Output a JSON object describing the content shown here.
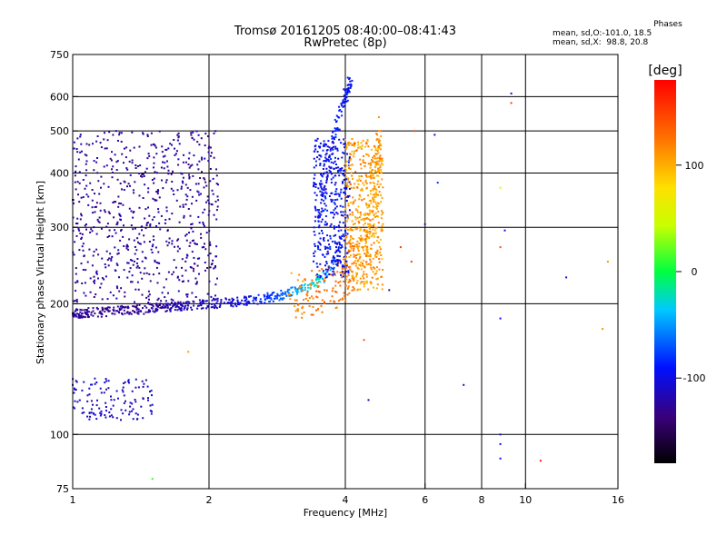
{
  "header": {
    "title_line1": "Tromsø 20161205 08:40:00–08:41:43",
    "title_line2": "RwPretec (8p)"
  },
  "phases_box": {
    "heading": "Phases",
    "line_o": "mean, sd,O:-101.0, 18.5",
    "line_x": "mean, sd,X:  98.8, 20.8"
  },
  "chart_data": {
    "type": "scatter",
    "title": "Tromsø 20161205 08:40:00–08:41:43",
    "subtitle": "RwPretec (8p)",
    "xlabel": "Frequency [MHz]",
    "ylabel": "Stationary phase Virtual Height [km]",
    "x_scale": "log",
    "y_scale": "log",
    "xlim": [
      1,
      16
    ],
    "ylim": [
      75,
      750
    ],
    "x_ticks": [
      1,
      2,
      4,
      6,
      8,
      10,
      16
    ],
    "x_ticklabels": [
      "1",
      "2",
      "4",
      "6",
      "8",
      "10",
      "16"
    ],
    "x_gridlines": [
      1,
      2,
      4,
      6,
      8,
      10,
      16
    ],
    "y_ticks": [
      75,
      100,
      200,
      300,
      400,
      500,
      600,
      750
    ],
    "y_ticklabels": [
      "75",
      "100",
      "200",
      "300",
      "400",
      "500",
      "600",
      "750"
    ],
    "y_gridlines": [
      100,
      200,
      300,
      400,
      500,
      600
    ],
    "grid": true,
    "colorbar": {
      "label": "[deg]",
      "range": [
        -180,
        180
      ],
      "ticks": [
        100,
        0,
        -100
      ],
      "ticklabels": [
        "100",
        "0",
        "-100"
      ]
    },
    "series": [
      {
        "trace": "o-mode-lower",
        "points": [
          {
            "x": 1.0,
            "h": 190,
            "p": -125
          },
          {
            "x": 1.05,
            "h": 190,
            "p": -130
          },
          {
            "x": 1.1,
            "h": 191,
            "p": -128
          },
          {
            "x": 1.2,
            "h": 192,
            "p": -130
          },
          {
            "x": 1.3,
            "h": 193,
            "p": -128
          },
          {
            "x": 1.4,
            "h": 194,
            "p": -126
          },
          {
            "x": 1.5,
            "h": 195,
            "p": -125
          },
          {
            "x": 1.6,
            "h": 196,
            "p": -120
          },
          {
            "x": 1.7,
            "h": 197,
            "p": -118
          },
          {
            "x": 1.8,
            "h": 198,
            "p": -115
          },
          {
            "x": 2.0,
            "h": 200,
            "p": -112
          },
          {
            "x": 2.2,
            "h": 201,
            "p": -110
          },
          {
            "x": 2.4,
            "h": 203,
            "p": -100
          },
          {
            "x": 2.6,
            "h": 205,
            "p": -85
          },
          {
            "x": 2.8,
            "h": 208,
            "p": -75
          },
          {
            "x": 3.0,
            "h": 212,
            "p": -60
          },
          {
            "x": 3.2,
            "h": 216,
            "p": -40
          },
          {
            "x": 3.5,
            "h": 225,
            "p": -20
          },
          {
            "x": 3.8,
            "h": 250,
            "p": -80
          },
          {
            "x": 4.0,
            "h": 300,
            "p": -95
          }
        ]
      },
      {
        "trace": "x-mode",
        "points": [
          {
            "x": 3.0,
            "h": 210,
            "p": 110
          },
          {
            "x": 3.3,
            "h": 212,
            "p": 120
          },
          {
            "x": 3.6,
            "h": 215,
            "p": 130
          },
          {
            "x": 3.9,
            "h": 225,
            "p": 125
          },
          {
            "x": 4.1,
            "h": 240,
            "p": 120
          },
          {
            "x": 4.3,
            "h": 260,
            "p": 110
          },
          {
            "x": 4.5,
            "h": 300,
            "p": 105
          },
          {
            "x": 4.6,
            "h": 350,
            "p": 100
          },
          {
            "x": 4.7,
            "h": 420,
            "p": 110
          },
          {
            "x": 4.75,
            "h": 500,
            "p": 115
          }
        ]
      },
      {
        "trace": "o-mode-upper",
        "points": [
          {
            "x": 3.5,
            "h": 300,
            "p": -90
          },
          {
            "x": 3.6,
            "h": 400,
            "p": -100
          },
          {
            "x": 3.8,
            "h": 500,
            "p": -85
          },
          {
            "x": 4.0,
            "h": 600,
            "p": -90
          },
          {
            "x": 4.1,
            "h": 650,
            "p": -95
          }
        ]
      },
      {
        "trace": "sporadic",
        "points": [
          {
            "x": 1.05,
            "h": 112,
            "p": -115
          },
          {
            "x": 1.15,
            "h": 112,
            "p": -110
          },
          {
            "x": 1.3,
            "h": 118,
            "p": -105
          },
          {
            "x": 1.0,
            "h": 130,
            "p": -105
          },
          {
            "x": 1.5,
            "h": 117,
            "p": -105
          },
          {
            "x": 1.5,
            "h": 79,
            "p": 10
          },
          {
            "x": 1.8,
            "h": 155,
            "p": 110
          },
          {
            "x": 4.4,
            "h": 165,
            "p": 140
          },
          {
            "x": 4.5,
            "h": 120,
            "p": -120
          },
          {
            "x": 7.3,
            "h": 130,
            "p": -110
          },
          {
            "x": 8.8,
            "h": 100,
            "p": -100
          },
          {
            "x": 8.8,
            "h": 95,
            "p": -105
          },
          {
            "x": 8.8,
            "h": 88,
            "p": -90
          },
          {
            "x": 8.8,
            "h": 185,
            "p": -100
          },
          {
            "x": 8.8,
            "h": 270,
            "p": 140
          },
          {
            "x": 9.0,
            "h": 295,
            "p": -100
          },
          {
            "x": 8.8,
            "h": 370,
            "p": 60
          },
          {
            "x": 9.3,
            "h": 580,
            "p": 150
          },
          {
            "x": 9.3,
            "h": 610,
            "p": -110
          },
          {
            "x": 10.8,
            "h": 87,
            "p": 170
          },
          {
            "x": 12.3,
            "h": 230,
            "p": -100
          },
          {
            "x": 15.2,
            "h": 250,
            "p": 110
          },
          {
            "x": 14.8,
            "h": 175,
            "p": 115
          },
          {
            "x": 6.3,
            "h": 490,
            "p": -110
          },
          {
            "x": 6.4,
            "h": 380,
            "p": -80
          },
          {
            "x": 5.7,
            "h": 500,
            "p": 140
          },
          {
            "x": 5.6,
            "h": 250,
            "p": 150
          },
          {
            "x": 5.0,
            "h": 215,
            "p": -130
          },
          {
            "x": 5.3,
            "h": 270,
            "p": 150
          },
          {
            "x": 6.0,
            "h": 305,
            "p": -120
          }
        ]
      }
    ]
  }
}
